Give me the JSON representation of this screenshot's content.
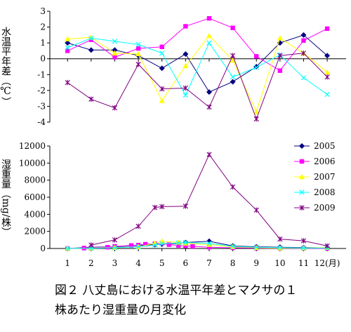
{
  "chart_data": [
    {
      "type": "line",
      "ylabel": "水温平年差（℃）",
      "ylim": [
        -4,
        3
      ],
      "yticks": [
        3,
        2,
        1,
        0,
        -1,
        -2,
        -3,
        -4
      ],
      "grid": false,
      "x": [
        1,
        2,
        3,
        4,
        5,
        6,
        7,
        8,
        9,
        10,
        11,
        12
      ],
      "series": [
        {
          "name": "2005",
          "color": "#000080",
          "marker": "diamond",
          "values": [
            1.0,
            0.55,
            0.55,
            0.2,
            -0.6,
            0.3,
            -2.1,
            -1.45,
            -0.5,
            1.0,
            1.5,
            0.2
          ]
        },
        {
          "name": "2006",
          "color": "#ff00ff",
          "marker": "square",
          "values": [
            0.5,
            1.2,
            0.1,
            0.65,
            0.75,
            2.05,
            2.55,
            1.95,
            0.15,
            -0.75,
            1.15,
            1.9
          ]
        },
        {
          "name": "2007",
          "color": "#ffff00",
          "marker": "triangle",
          "values": [
            1.25,
            1.35,
            0.35,
            0.3,
            -2.65,
            -0.45,
            1.45,
            -0.1,
            -3.35,
            1.3,
            0.35,
            -0.85
          ]
        },
        {
          "name": "2008",
          "color": "#00ffff",
          "marker": "x",
          "values": [
            0.7,
            1.3,
            1.1,
            0.9,
            0.35,
            -2.3,
            1.0,
            -1.15,
            -0.55,
            0.25,
            -1.2,
            -2.25
          ]
        },
        {
          "name": "2009",
          "color": "#800080",
          "marker": "star",
          "values": [
            -1.5,
            -2.55,
            -3.1,
            -0.35,
            -1.9,
            -1.85,
            -3.05,
            0.2,
            -3.8,
            0.2,
            0.35,
            -1.15
          ]
        }
      ]
    },
    {
      "type": "line",
      "ylabel": "湿重量（mg/株）",
      "ylim": [
        0,
        12000
      ],
      "yticks": [
        12000,
        10000,
        8000,
        6000,
        4000,
        2000,
        0
      ],
      "xlabels": [
        "1",
        "2",
        "3",
        "4",
        "5",
        "6",
        "7",
        "8",
        "9",
        "10",
        "11",
        "12(月)"
      ],
      "legend_position": "top-right",
      "grid": false,
      "x": [
        1,
        1.7,
        2,
        2.7,
        3,
        3.7,
        4,
        4.3,
        4.7,
        5,
        5.3,
        5.7,
        6,
        6.3,
        7,
        8,
        9,
        10,
        11,
        12
      ],
      "series": [
        {
          "name": "2005",
          "color": "#000080",
          "marker": "diamond",
          "values": [
            0,
            null,
            150,
            null,
            200,
            null,
            350,
            null,
            450,
            500,
            null,
            600,
            700,
            null,
            850,
            300,
            200,
            150,
            100,
            80
          ]
        },
        {
          "name": "2006",
          "color": "#ff00ff",
          "marker": "square",
          "values": [
            0,
            50,
            100,
            150,
            250,
            350,
            400,
            500,
            550,
            600,
            450,
            350,
            300,
            250,
            150,
            80,
            50,
            30,
            20,
            10
          ]
        },
        {
          "name": "2007",
          "color": "#ffff00",
          "marker": "triangle",
          "values": [
            0,
            null,
            50,
            null,
            100,
            null,
            200,
            null,
            600,
            850,
            null,
            700,
            600,
            null,
            450,
            200,
            100,
            50,
            50,
            100
          ]
        },
        {
          "name": "2008",
          "color": "#00ffff",
          "marker": "x",
          "values": [
            0,
            null,
            30,
            null,
            80,
            null,
            200,
            null,
            400,
            550,
            null,
            650,
            700,
            null,
            600,
            250,
            150,
            100,
            50,
            50
          ]
        },
        {
          "name": "2009",
          "color": "#800080",
          "marker": "star",
          "values": [
            null,
            null,
            400,
            null,
            1000,
            null,
            2600,
            null,
            4800,
            4900,
            null,
            null,
            4950,
            null,
            11000,
            7200,
            4500,
            1100,
            900,
            300
          ]
        }
      ]
    }
  ],
  "caption": {
    "line1": "図２ 八丈島における水温平年差とマクサの１",
    "line2": "株あたり湿重量の月変化"
  }
}
